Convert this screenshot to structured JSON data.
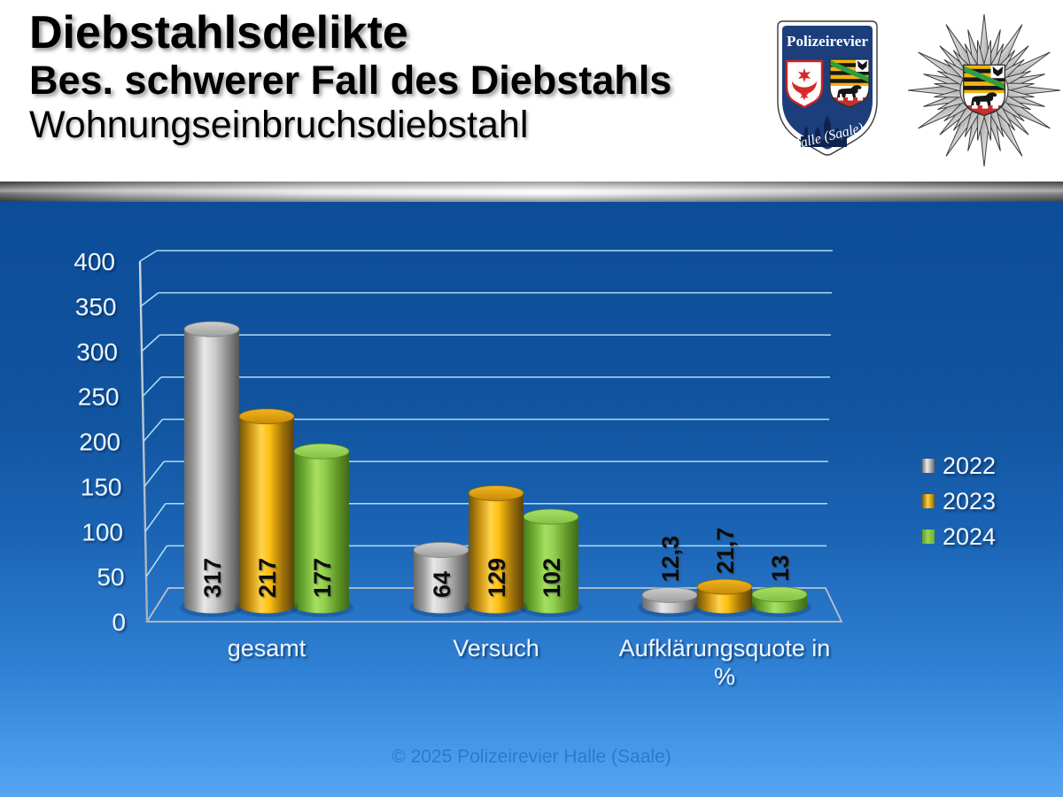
{
  "header": {
    "titles": [
      "Diebstahlsdelikte",
      "Bes. schwerer Fall des Diebstahls",
      "Wohnungseinbruchsdiebstahl"
    ],
    "badge": {
      "org": "Polizeirevier",
      "city": "Halle (Saale)"
    }
  },
  "footer": {
    "copyright": "© 2025 Polizeirevier Halle (Saale)"
  },
  "colors": {
    "background_top": "#0c4c98",
    "background_bottom": "#55a5f2",
    "grid": "#aeddf5",
    "axis_frame": "#b9c2cc",
    "silver": "#b5b5b5",
    "gold": "#ffc000",
    "green": "#92d050",
    "label_text": "#eaf4fd",
    "value_text": "#0a0a0a"
  },
  "chart_data": {
    "type": "bar",
    "style": "3d-cylinder",
    "categories": [
      "gesamt",
      "Versuch",
      "Aufklärungsquote in %"
    ],
    "series": [
      {
        "name": "2022",
        "color": "silver",
        "values": [
          317,
          64,
          12.3
        ],
        "labels": [
          "317",
          "64",
          "12,3"
        ]
      },
      {
        "name": "2023",
        "color": "gold",
        "values": [
          217,
          129,
          21.7
        ],
        "labels": [
          "217",
          "129",
          "21,7"
        ]
      },
      {
        "name": "2024",
        "color": "green",
        "values": [
          177,
          102,
          13
        ],
        "labels": [
          "177",
          "102",
          "13"
        ]
      }
    ],
    "ylim": [
      0,
      400
    ],
    "ytick_step": 50,
    "grid": true,
    "legend_position": "right"
  }
}
